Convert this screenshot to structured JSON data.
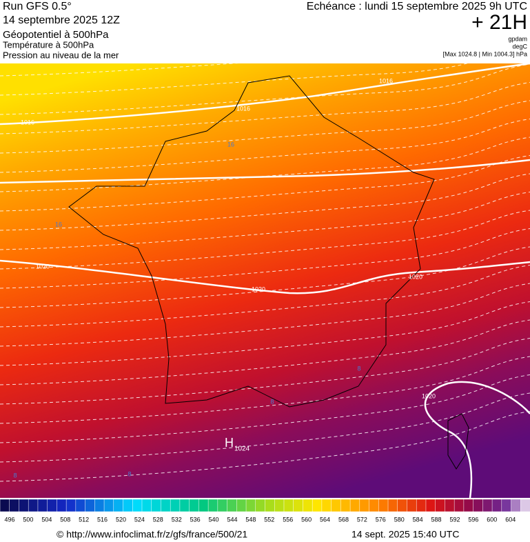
{
  "header": {
    "run": "Run GFS 0.5°",
    "date": "14 septembre 2025 12Z",
    "field1": "Géopotentiel à 500hPa",
    "field2": "Température à 500hPa",
    "field3": "Pression au niveau de la mer",
    "echeance": "Echéance : lundi 15 septembre 2025 9h UTC",
    "offset": "+ 21H",
    "unit1": "gpdam",
    "unit2": "degC",
    "range": "[Max 1024.8 | Min 1004.3] hPa"
  },
  "map": {
    "isobar_labels": [
      "1016",
      "1016",
      "1016",
      "1020",
      "1020",
      "1020",
      "1020"
    ],
    "temp_labels": [
      "16",
      "16",
      "8",
      "8",
      "8",
      "8"
    ],
    "high": {
      "letter": "H",
      "value": "1024"
    }
  },
  "colorbar": {
    "labels": [
      496,
      500,
      504,
      508,
      512,
      516,
      520,
      524,
      528,
      532,
      536,
      540,
      544,
      548,
      552,
      556,
      560,
      564,
      568,
      572,
      576,
      580,
      584,
      588,
      592,
      596,
      600,
      604
    ]
  },
  "footer": {
    "url": "© http://www.infoclimat.fr/z/gfs/france/500/21",
    "timestamp": "14 sept. 2025 15:40 UTC"
  }
}
